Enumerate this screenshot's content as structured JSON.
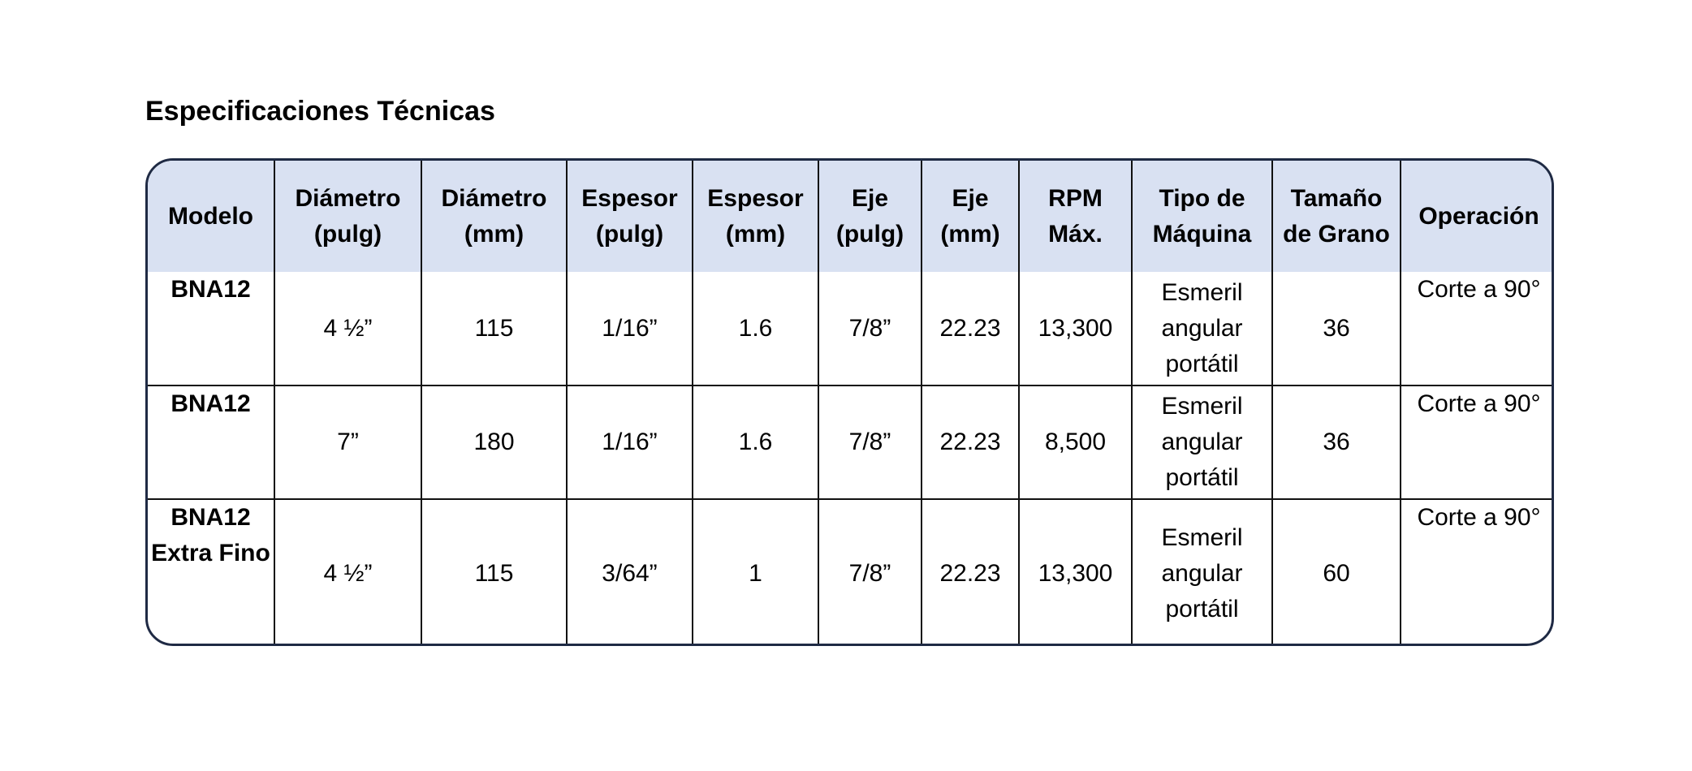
{
  "title": "Especificaciones Técnicas",
  "table": {
    "header": [
      "Modelo",
      "Diámetro (pulg)",
      "Diámetro (mm)",
      "Espesor (pulg)",
      "Espesor (mm)",
      "Eje (pulg)",
      "Eje (mm)",
      "RPM Máx.",
      "Tipo de Máquina",
      "Tamaño de Grano",
      "Operación"
    ],
    "rows": [
      [
        "BNA12",
        "4 ½”",
        "115",
        "1/16”",
        "1.6",
        "7/8”",
        "22.23",
        "13,300",
        "Esmeril angular portátil",
        "36",
        "Corte a 90°"
      ],
      [
        "BNA12",
        "7”",
        "180",
        "1/16”",
        "1.6",
        "7/8”",
        "22.23",
        "8,500",
        "Esmeril angular portátil",
        "36",
        "Corte a 90°"
      ],
      [
        "BNA12 Extra Fino",
        "4 ½”",
        "115",
        "3/64”",
        "1",
        "7/8”",
        "22.23",
        "13,300",
        "Esmeril angular portátil",
        "60",
        "Corte a 90°"
      ]
    ]
  }
}
